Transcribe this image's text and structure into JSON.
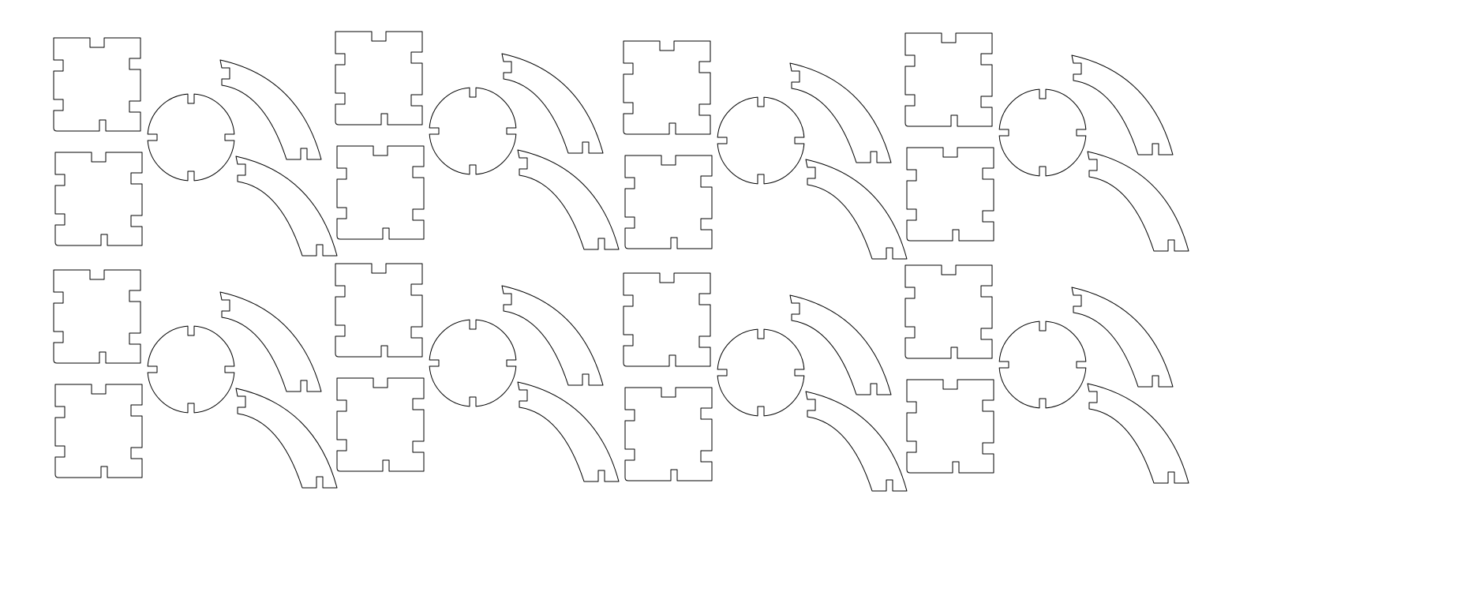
{
  "sheet": {
    "description_type": "laser-cut nesting sheet",
    "colors": {
      "background": "#ffffff",
      "outline": "#000000"
    },
    "grid": {
      "rows": 2,
      "columns": 4
    },
    "set_composition": {
      "cross_pieces": 2,
      "round_hubs": 1,
      "curved_arcs": 2
    },
    "total_pieces": 40,
    "text_labels": []
  }
}
